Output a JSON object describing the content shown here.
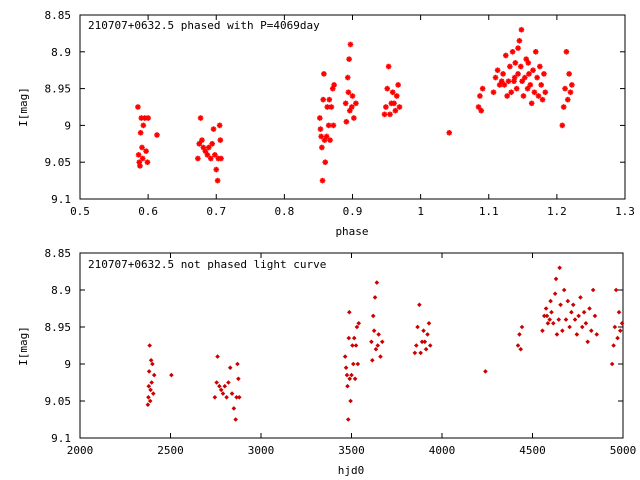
{
  "chart_data": [
    {
      "type": "scatter",
      "title": "210707+0632.5 phased with P=4069day",
      "xlabel": "phase",
      "ylabel": "I[mag]",
      "xlim": [
        0.5,
        1.3
      ],
      "ylim": [
        9.1,
        8.85
      ],
      "y_inverted": true,
      "grid": false,
      "marker": "star",
      "color": "#ff0000",
      "x_ticks": [
        "0.5",
        "0.6",
        "0.7",
        "0.8",
        "0.9",
        "1",
        "1.1",
        "1.2",
        "1.3"
      ],
      "y_ticks": [
        "8.85",
        "8.9",
        "8.95",
        "9",
        "9.05",
        "9.1"
      ],
      "points": [
        [
          0.585,
          8.975
        ],
        [
          0.586,
          9.04
        ],
        [
          0.587,
          9.05
        ],
        [
          0.588,
          9.055
        ],
        [
          0.589,
          9.01
        ],
        [
          0.59,
          8.99
        ],
        [
          0.591,
          9.03
        ],
        [
          0.592,
          9.045
        ],
        [
          0.593,
          9.0
        ],
        [
          0.595,
          8.99
        ],
        [
          0.597,
          9.035
        ],
        [
          0.599,
          9.05
        ],
        [
          0.6,
          8.99
        ],
        [
          0.613,
          9.013
        ],
        [
          0.673,
          9.045
        ],
        [
          0.675,
          9.025
        ],
        [
          0.677,
          8.99
        ],
        [
          0.679,
          9.02
        ],
        [
          0.681,
          9.03
        ],
        [
          0.684,
          9.035
        ],
        [
          0.687,
          9.04
        ],
        [
          0.689,
          9.03
        ],
        [
          0.692,
          9.045
        ],
        [
          0.694,
          9.025
        ],
        [
          0.696,
          9.005
        ],
        [
          0.698,
          9.04
        ],
        [
          0.7,
          9.06
        ],
        [
          0.702,
          9.075
        ],
        [
          0.703,
          9.045
        ],
        [
          0.705,
          9.0
        ],
        [
          0.706,
          9.02
        ],
        [
          0.707,
          9.045
        ],
        [
          0.852,
          8.99
        ],
        [
          0.853,
          9.005
        ],
        [
          0.854,
          9.015
        ],
        [
          0.855,
          9.03
        ],
        [
          0.856,
          9.075
        ],
        [
          0.857,
          8.965
        ],
        [
          0.858,
          8.93
        ],
        [
          0.859,
          9.02
        ],
        [
          0.86,
          9.05
        ],
        [
          0.862,
          9.015
        ],
        [
          0.863,
          8.975
        ],
        [
          0.865,
          9.0
        ],
        [
          0.866,
          8.965
        ],
        [
          0.867,
          9.02
        ],
        [
          0.869,
          8.975
        ],
        [
          0.871,
          8.95
        ],
        [
          0.872,
          9.0
        ],
        [
          0.873,
          8.945
        ],
        [
          0.89,
          8.97
        ],
        [
          0.891,
          8.995
        ],
        [
          0.893,
          8.935
        ],
        [
          0.894,
          8.955
        ],
        [
          0.895,
          8.91
        ],
        [
          0.896,
          8.98
        ],
        [
          0.897,
          8.89
        ],
        [
          0.899,
          8.975
        ],
        [
          0.9,
          8.96
        ],
        [
          0.902,
          8.99
        ],
        [
          0.905,
          8.97
        ],
        [
          0.947,
          8.985
        ],
        [
          0.949,
          8.975
        ],
        [
          0.951,
          8.95
        ],
        [
          0.953,
          8.92
        ],
        [
          0.955,
          8.985
        ],
        [
          0.957,
          8.97
        ],
        [
          0.959,
          8.955
        ],
        [
          0.961,
          8.97
        ],
        [
          0.963,
          8.98
        ],
        [
          0.965,
          8.96
        ],
        [
          0.967,
          8.945
        ],
        [
          0.969,
          8.975
        ],
        [
          1.042,
          9.01
        ],
        [
          1.085,
          8.975
        ],
        [
          1.087,
          8.96
        ],
        [
          1.089,
          8.98
        ],
        [
          1.091,
          8.95
        ],
        [
          1.107,
          8.955
        ],
        [
          1.11,
          8.935
        ],
        [
          1.113,
          8.925
        ],
        [
          1.116,
          8.945
        ],
        [
          1.119,
          8.94
        ],
        [
          1.121,
          8.93
        ],
        [
          1.123,
          8.945
        ],
        [
          1.125,
          8.905
        ],
        [
          1.127,
          8.96
        ],
        [
          1.129,
          8.94
        ],
        [
          1.131,
          8.92
        ],
        [
          1.133,
          8.955
        ],
        [
          1.135,
          8.9
        ],
        [
          1.137,
          8.94
        ],
        [
          1.139,
          8.915
        ],
        [
          1.141,
          8.95
        ],
        [
          1.143,
          8.93
        ],
        [
          1.145,
          8.885
        ],
        [
          1.147,
          8.92
        ],
        [
          1.149,
          8.94
        ],
        [
          1.151,
          8.96
        ],
        [
          1.153,
          8.935
        ],
        [
          1.155,
          8.91
        ],
        [
          1.157,
          8.95
        ],
        [
          1.159,
          8.93
        ],
        [
          1.161,
          8.945
        ],
        [
          1.163,
          8.97
        ],
        [
          1.165,
          8.925
        ],
        [
          1.167,
          8.955
        ],
        [
          1.169,
          8.9
        ],
        [
          1.171,
          8.935
        ],
        [
          1.173,
          8.96
        ],
        [
          1.175,
          8.92
        ],
        [
          1.177,
          8.945
        ],
        [
          1.179,
          8.965
        ],
        [
          1.181,
          8.93
        ],
        [
          1.183,
          8.955
        ],
        [
          1.148,
          8.87
        ],
        [
          1.143,
          8.895
        ],
        [
          1.158,
          8.915
        ],
        [
          1.138,
          8.935
        ],
        [
          1.208,
          9.0
        ],
        [
          1.21,
          8.975
        ],
        [
          1.212,
          8.95
        ],
        [
          1.214,
          8.9
        ],
        [
          1.216,
          8.965
        ],
        [
          1.218,
          8.93
        ],
        [
          1.22,
          8.955
        ],
        [
          1.222,
          8.945
        ]
      ]
    },
    {
      "type": "scatter",
      "title": "210707+0632.5 not phased light curve",
      "xlabel": "hjd0",
      "ylabel": "I[mag]",
      "xlim": [
        2000,
        5000
      ],
      "ylim": [
        9.1,
        8.85
      ],
      "y_inverted": true,
      "grid": false,
      "marker": "diamond",
      "color": "#cc0000",
      "x_ticks": [
        "2000",
        "2500",
        "3000",
        "3500",
        "4000",
        "4500",
        "5000"
      ],
      "y_ticks": [
        "8.85",
        "8.9",
        "8.95",
        "9",
        "9.05",
        "9.1"
      ],
      "points": [
        [
          2375,
          9.055
        ],
        [
          2378,
          9.045
        ],
        [
          2380,
          9.03
        ],
        [
          2382,
          9.01
        ],
        [
          2385,
          8.975
        ],
        [
          2388,
          9.05
        ],
        [
          2390,
          9.035
        ],
        [
          2393,
          8.995
        ],
        [
          2396,
          9.025
        ],
        [
          2400,
          9.0
        ],
        [
          2405,
          9.04
        ],
        [
          2410,
          9.015
        ],
        [
          2505,
          9.015
        ],
        [
          2745,
          9.045
        ],
        [
          2755,
          9.025
        ],
        [
          2760,
          8.99
        ],
        [
          2770,
          9.03
        ],
        [
          2780,
          9.035
        ],
        [
          2790,
          9.04
        ],
        [
          2800,
          9.03
        ],
        [
          2810,
          9.045
        ],
        [
          2820,
          9.025
        ],
        [
          2830,
          9.005
        ],
        [
          2840,
          9.04
        ],
        [
          2850,
          9.06
        ],
        [
          2860,
          9.075
        ],
        [
          2865,
          9.045
        ],
        [
          2870,
          9.0
        ],
        [
          2875,
          9.02
        ],
        [
          2880,
          9.045
        ],
        [
          3465,
          8.99
        ],
        [
          3470,
          9.005
        ],
        [
          3475,
          9.015
        ],
        [
          3478,
          9.03
        ],
        [
          3482,
          9.075
        ],
        [
          3485,
          8.965
        ],
        [
          3488,
          8.93
        ],
        [
          3490,
          9.02
        ],
        [
          3495,
          9.05
        ],
        [
          3500,
          9.015
        ],
        [
          3505,
          8.975
        ],
        [
          3510,
          9.0
        ],
        [
          3515,
          8.965
        ],
        [
          3520,
          9.02
        ],
        [
          3525,
          8.975
        ],
        [
          3530,
          8.95
        ],
        [
          3535,
          9.0
        ],
        [
          3540,
          8.945
        ],
        [
          3610,
          8.97
        ],
        [
          3615,
          8.995
        ],
        [
          3620,
          8.935
        ],
        [
          3625,
          8.955
        ],
        [
          3630,
          8.91
        ],
        [
          3635,
          8.98
        ],
        [
          3640,
          8.89
        ],
        [
          3645,
          8.975
        ],
        [
          3650,
          8.96
        ],
        [
          3660,
          8.99
        ],
        [
          3670,
          8.97
        ],
        [
          3850,
          8.985
        ],
        [
          3858,
          8.975
        ],
        [
          3865,
          8.95
        ],
        [
          3875,
          8.92
        ],
        [
          3882,
          8.985
        ],
        [
          3890,
          8.97
        ],
        [
          3898,
          8.955
        ],
        [
          3905,
          8.97
        ],
        [
          3912,
          8.98
        ],
        [
          3920,
          8.96
        ],
        [
          3928,
          8.945
        ],
        [
          3935,
          8.975
        ],
        [
          4240,
          9.01
        ],
        [
          4420,
          8.975
        ],
        [
          4428,
          8.96
        ],
        [
          4435,
          8.98
        ],
        [
          4442,
          8.95
        ],
        [
          4555,
          8.955
        ],
        [
          4565,
          8.935
        ],
        [
          4575,
          8.925
        ],
        [
          4585,
          8.945
        ],
        [
          4595,
          8.94
        ],
        [
          4605,
          8.93
        ],
        [
          4615,
          8.945
        ],
        [
          4625,
          8.905
        ],
        [
          4635,
          8.96
        ],
        [
          4645,
          8.94
        ],
        [
          4655,
          8.92
        ],
        [
          4665,
          8.955
        ],
        [
          4675,
          8.9
        ],
        [
          4685,
          8.94
        ],
        [
          4695,
          8.915
        ],
        [
          4705,
          8.95
        ],
        [
          4715,
          8.93
        ],
        [
          4650,
          8.87
        ],
        [
          4725,
          8.92
        ],
        [
          4735,
          8.94
        ],
        [
          4745,
          8.96
        ],
        [
          4755,
          8.935
        ],
        [
          4765,
          8.91
        ],
        [
          4775,
          8.95
        ],
        [
          4785,
          8.93
        ],
        [
          4795,
          8.945
        ],
        [
          4805,
          8.97
        ],
        [
          4815,
          8.925
        ],
        [
          4825,
          8.955
        ],
        [
          4835,
          8.9
        ],
        [
          4845,
          8.935
        ],
        [
          4855,
          8.96
        ],
        [
          4630,
          8.885
        ],
        [
          4600,
          8.915
        ],
        [
          4580,
          8.935
        ],
        [
          4940,
          9.0
        ],
        [
          4948,
          8.975
        ],
        [
          4955,
          8.95
        ],
        [
          4962,
          8.9
        ],
        [
          4970,
          8.965
        ],
        [
          4978,
          8.93
        ],
        [
          4985,
          8.955
        ],
        [
          4995,
          8.945
        ]
      ]
    }
  ]
}
